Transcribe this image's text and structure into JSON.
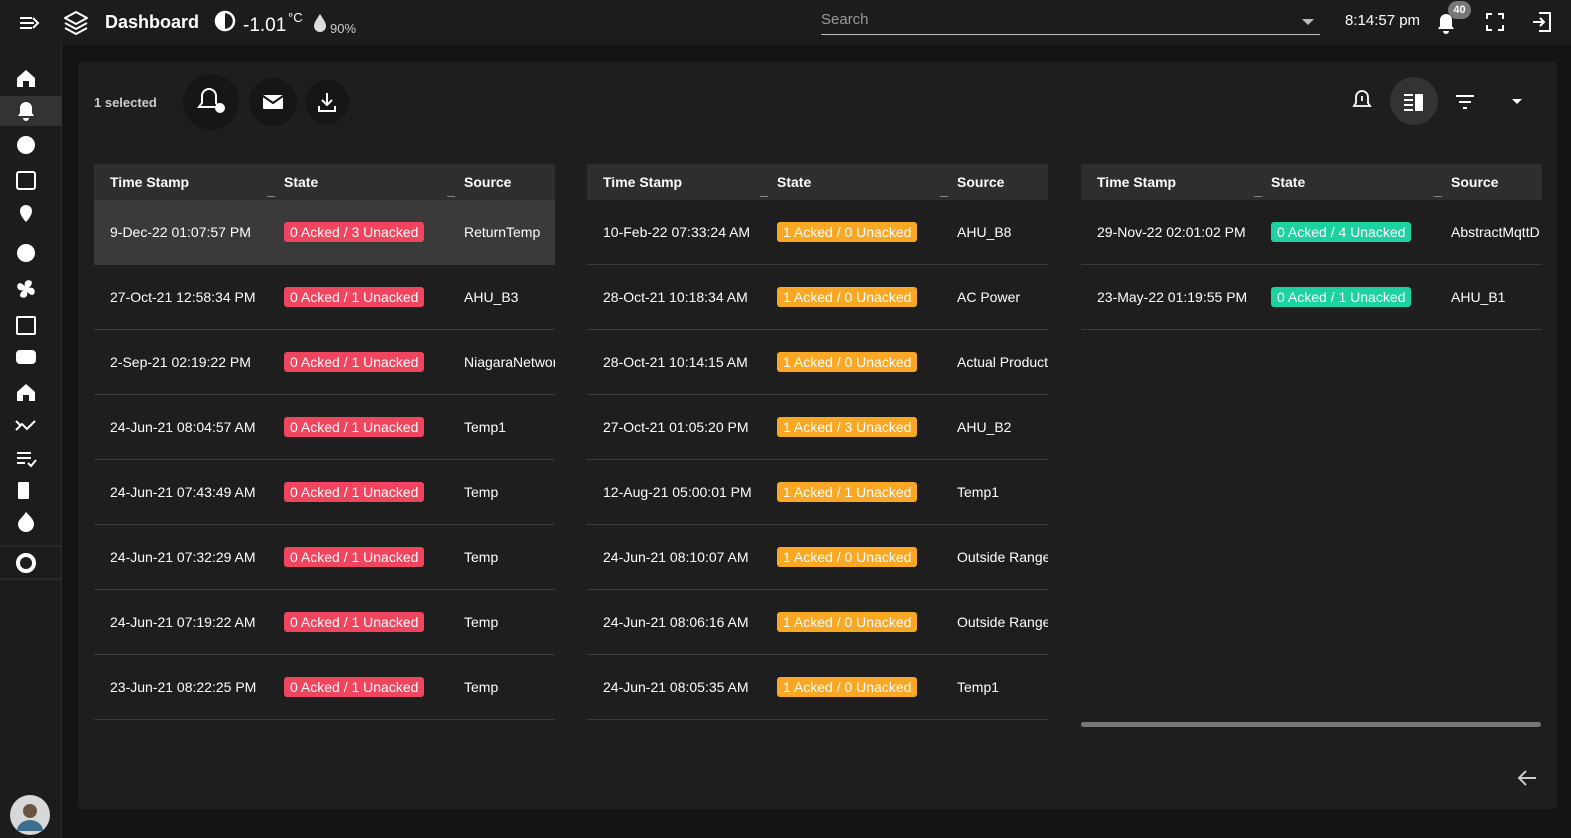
{
  "header": {
    "title": "Dashboard",
    "temperature": "-1.01",
    "temperature_unit": "°C",
    "humidity": "90%",
    "search_placeholder": "Search",
    "time": "8:14:57 pm",
    "notification_count": "40"
  },
  "toolbar": {
    "selection": "1 selected"
  },
  "tables": [
    {
      "badge_color": "#f0455f",
      "selected_row": 0,
      "columns": [
        "Time Stamp",
        "State",
        "Source"
      ],
      "rows": [
        [
          "9-Dec-22 01:07:57 PM",
          "0 Acked / 3 Unacked",
          "ReturnTemp"
        ],
        [
          "27-Oct-21 12:58:34 PM",
          "0 Acked / 1 Unacked",
          "AHU_B3"
        ],
        [
          "2-Sep-21 02:19:22 PM",
          "0 Acked / 1 Unacked",
          "NiagaraNetwor"
        ],
        [
          "24-Jun-21 08:04:57 AM",
          "0 Acked / 1 Unacked",
          "Temp1"
        ],
        [
          "24-Jun-21 07:43:49 AM",
          "0 Acked / 1 Unacked",
          "Temp"
        ],
        [
          "24-Jun-21 07:32:29 AM",
          "0 Acked / 1 Unacked",
          "Temp"
        ],
        [
          "24-Jun-21 07:19:22 AM",
          "0 Acked / 1 Unacked",
          "Temp"
        ],
        [
          "23-Jun-21 08:22:25 PM",
          "0 Acked / 1 Unacked",
          "Temp"
        ]
      ]
    },
    {
      "badge_color": "#f9a825",
      "columns": [
        "Time Stamp",
        "State",
        "Source"
      ],
      "rows": [
        [
          "10-Feb-22 07:33:24 AM",
          "1 Acked / 0 Unacked",
          "AHU_B8"
        ],
        [
          "28-Oct-21 10:18:34 AM",
          "1 Acked / 0 Unacked",
          "AC Power"
        ],
        [
          "28-Oct-21 10:14:15 AM",
          "1 Acked / 0 Unacked",
          "Actual Product"
        ],
        [
          "27-Oct-21 01:05:20 PM",
          "1 Acked / 3 Unacked",
          "AHU_B2"
        ],
        [
          "12-Aug-21 05:00:01 PM",
          "1 Acked / 1 Unacked",
          "Temp1"
        ],
        [
          "24-Jun-21 08:10:07 AM",
          "1 Acked / 0 Unacked",
          "Outside Range"
        ],
        [
          "24-Jun-21 08:06:16 AM",
          "1 Acked / 0 Unacked",
          "Outside Range"
        ],
        [
          "24-Jun-21 08:05:35 AM",
          "1 Acked / 0 Unacked",
          "Temp1"
        ]
      ]
    },
    {
      "badge_color": "#1dd1a1",
      "columns": [
        "Time Stamp",
        "State",
        "Source"
      ],
      "rows": [
        [
          "29-Nov-22 02:01:02 PM",
          "0 Acked / 4 Unacked",
          "AbstractMqttD"
        ],
        [
          "23-May-22 01:19:55 PM",
          "0 Acked / 1 Unacked",
          "AHU_B1"
        ]
      ]
    }
  ]
}
